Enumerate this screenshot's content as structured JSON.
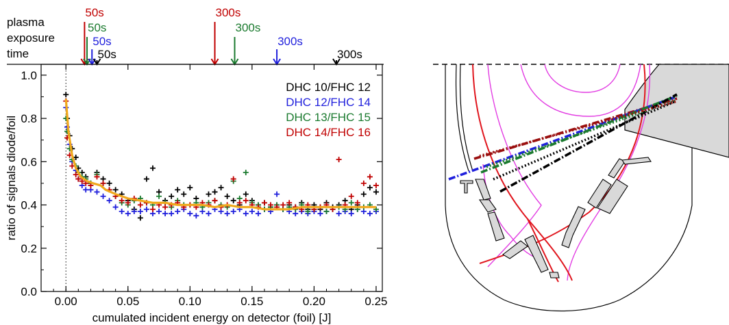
{
  "chart_data": {
    "type": "scatter",
    "xlabel": "cumulated incident energy on detector (foil) [J]",
    "ylabel": "ratio of signals diode/foil",
    "xlim": [
      -0.02,
      0.255
    ],
    "ylim": [
      0.0,
      1.05
    ],
    "xticks": [
      0.0,
      0.05,
      0.1,
      0.15,
      0.2,
      0.25
    ],
    "xtick_labels": [
      "0.00",
      "0.05",
      "0.10",
      "0.15",
      "0.20",
      "0.25"
    ],
    "yticks": [
      0.0,
      0.2,
      0.4,
      0.6,
      0.8,
      1.0
    ],
    "ytick_labels": [
      "0.0",
      "0.2",
      "0.4",
      "0.6",
      "0.8",
      "1.0"
    ],
    "legend_position": "top-right",
    "exposure_axis": {
      "title_lines": [
        "plasma",
        "exposure",
        "time"
      ],
      "markers": [
        {
          "label": "50s",
          "x": 0.015,
          "color": "#c00000",
          "level": 0
        },
        {
          "label": "50s",
          "x": 0.017,
          "color": "#1a7a2e",
          "level": 1
        },
        {
          "label": "50s",
          "x": 0.021,
          "color": "#1f1fdc",
          "level": 2
        },
        {
          "label": "50s",
          "x": 0.025,
          "color": "#000000",
          "level": 3
        },
        {
          "label": "300s",
          "x": 0.12,
          "color": "#c00000",
          "level": 0
        },
        {
          "label": "300s",
          "x": 0.136,
          "color": "#1a7a2e",
          "level": 1
        },
        {
          "label": "300s",
          "x": 0.17,
          "color": "#1f1fdc",
          "level": 2
        },
        {
          "label": "300s",
          "x": 0.218,
          "color": "#000000",
          "level": 3
        }
      ]
    },
    "series": [
      {
        "name": "DHC 10/FHC 12",
        "color": "#000000",
        "points": [
          [
            0.0,
            0.91
          ],
          [
            0.001,
            0.8
          ],
          [
            0.003,
            0.72
          ],
          [
            0.005,
            0.66
          ],
          [
            0.008,
            0.62
          ],
          [
            0.01,
            0.57
          ],
          [
            0.013,
            0.55
          ],
          [
            0.016,
            0.53
          ],
          [
            0.02,
            0.5
          ],
          [
            0.025,
            0.55
          ],
          [
            0.03,
            0.52
          ],
          [
            0.035,
            0.5
          ],
          [
            0.04,
            0.47
          ],
          [
            0.045,
            0.45
          ],
          [
            0.05,
            0.42
          ],
          [
            0.055,
            0.38
          ],
          [
            0.06,
            0.34
          ],
          [
            0.065,
            0.52
          ],
          [
            0.07,
            0.57
          ],
          [
            0.075,
            0.46
          ],
          [
            0.08,
            0.42
          ],
          [
            0.085,
            0.44
          ],
          [
            0.09,
            0.47
          ],
          [
            0.095,
            0.45
          ],
          [
            0.1,
            0.48
          ],
          [
            0.105,
            0.43
          ],
          [
            0.11,
            0.4
          ],
          [
            0.115,
            0.45
          ],
          [
            0.12,
            0.46
          ],
          [
            0.125,
            0.48
          ],
          [
            0.13,
            0.44
          ],
          [
            0.135,
            0.42
          ],
          [
            0.14,
            0.4
          ],
          [
            0.145,
            0.45
          ],
          [
            0.15,
            0.42
          ],
          [
            0.155,
            0.4
          ],
          [
            0.16,
            0.41
          ],
          [
            0.165,
            0.39
          ],
          [
            0.17,
            0.4
          ],
          [
            0.175,
            0.38
          ],
          [
            0.18,
            0.4
          ],
          [
            0.185,
            0.39
          ],
          [
            0.19,
            0.41
          ],
          [
            0.195,
            0.38
          ],
          [
            0.2,
            0.4
          ],
          [
            0.205,
            0.38
          ],
          [
            0.21,
            0.41
          ],
          [
            0.215,
            0.39
          ],
          [
            0.22,
            0.4
          ],
          [
            0.225,
            0.42
          ],
          [
            0.23,
            0.38
          ],
          [
            0.235,
            0.4
          ],
          [
            0.24,
            0.45
          ],
          [
            0.245,
            0.48
          ],
          [
            0.25,
            0.46
          ]
        ]
      },
      {
        "name": "DHC 12/FHC 14",
        "color": "#1f1fdc",
        "points": [
          [
            0.0,
            0.85
          ],
          [
            0.001,
            0.76
          ],
          [
            0.003,
            0.68
          ],
          [
            0.005,
            0.6
          ],
          [
            0.008,
            0.56
          ],
          [
            0.01,
            0.52
          ],
          [
            0.013,
            0.49
          ],
          [
            0.016,
            0.47
          ],
          [
            0.02,
            0.47
          ],
          [
            0.025,
            0.46
          ],
          [
            0.03,
            0.44
          ],
          [
            0.035,
            0.42
          ],
          [
            0.04,
            0.39
          ],
          [
            0.045,
            0.37
          ],
          [
            0.05,
            0.36
          ],
          [
            0.055,
            0.37
          ],
          [
            0.06,
            0.37
          ],
          [
            0.065,
            0.38
          ],
          [
            0.07,
            0.36
          ],
          [
            0.075,
            0.37
          ],
          [
            0.08,
            0.36
          ],
          [
            0.085,
            0.36
          ],
          [
            0.09,
            0.37
          ],
          [
            0.095,
            0.38
          ],
          [
            0.1,
            0.36
          ],
          [
            0.105,
            0.35
          ],
          [
            0.11,
            0.37
          ],
          [
            0.115,
            0.36
          ],
          [
            0.12,
            0.38
          ],
          [
            0.125,
            0.37
          ],
          [
            0.13,
            0.36
          ],
          [
            0.135,
            0.37
          ],
          [
            0.14,
            0.38
          ],
          [
            0.145,
            0.36
          ],
          [
            0.15,
            0.37
          ],
          [
            0.155,
            0.36
          ],
          [
            0.16,
            0.38
          ],
          [
            0.165,
            0.37
          ],
          [
            0.17,
            0.45
          ],
          [
            0.175,
            0.38
          ],
          [
            0.18,
            0.37
          ],
          [
            0.185,
            0.36
          ],
          [
            0.19,
            0.37
          ],
          [
            0.195,
            0.36
          ],
          [
            0.2,
            0.37
          ],
          [
            0.205,
            0.36
          ],
          [
            0.21,
            0.37
          ],
          [
            0.215,
            0.38
          ],
          [
            0.22,
            0.36
          ],
          [
            0.225,
            0.37
          ],
          [
            0.23,
            0.36
          ],
          [
            0.235,
            0.38
          ],
          [
            0.24,
            0.37
          ],
          [
            0.245,
            0.36
          ],
          [
            0.25,
            0.37
          ]
        ]
      },
      {
        "name": "DHC 13/FHC 15",
        "color": "#1a7a2e",
        "points": [
          [
            0.0,
            0.8
          ],
          [
            0.001,
            0.74
          ],
          [
            0.003,
            0.66
          ],
          [
            0.005,
            0.61
          ],
          [
            0.008,
            0.58
          ],
          [
            0.01,
            0.55
          ],
          [
            0.013,
            0.53
          ],
          [
            0.016,
            0.52
          ],
          [
            0.02,
            0.5
          ],
          [
            0.025,
            0.54
          ],
          [
            0.03,
            0.5
          ],
          [
            0.035,
            0.47
          ],
          [
            0.04,
            0.44
          ],
          [
            0.045,
            0.41
          ],
          [
            0.05,
            0.4
          ],
          [
            0.055,
            0.42
          ],
          [
            0.06,
            0.43
          ],
          [
            0.065,
            0.41
          ],
          [
            0.07,
            0.4
          ],
          [
            0.075,
            0.44
          ],
          [
            0.08,
            0.41
          ],
          [
            0.085,
            0.39
          ],
          [
            0.09,
            0.42
          ],
          [
            0.095,
            0.4
          ],
          [
            0.1,
            0.4
          ],
          [
            0.105,
            0.41
          ],
          [
            0.11,
            0.39
          ],
          [
            0.115,
            0.41
          ],
          [
            0.12,
            0.42
          ],
          [
            0.125,
            0.4
          ],
          [
            0.13,
            0.39
          ],
          [
            0.135,
            0.51
          ],
          [
            0.14,
            0.43
          ],
          [
            0.145,
            0.55
          ],
          [
            0.15,
            0.41
          ],
          [
            0.155,
            0.4
          ],
          [
            0.16,
            0.38
          ],
          [
            0.165,
            0.39
          ],
          [
            0.17,
            0.4
          ],
          [
            0.175,
            0.38
          ],
          [
            0.18,
            0.39
          ],
          [
            0.185,
            0.38
          ],
          [
            0.19,
            0.4
          ],
          [
            0.195,
            0.37
          ],
          [
            0.2,
            0.38
          ],
          [
            0.205,
            0.39
          ],
          [
            0.21,
            0.37
          ],
          [
            0.215,
            0.38
          ],
          [
            0.22,
            0.39
          ],
          [
            0.225,
            0.38
          ],
          [
            0.23,
            0.41
          ],
          [
            0.235,
            0.38
          ],
          [
            0.24,
            0.39
          ],
          [
            0.245,
            0.4
          ],
          [
            0.25,
            0.38
          ]
        ]
      },
      {
        "name": "DHC 14/FHC 16",
        "color": "#c00000",
        "points": [
          [
            0.0,
            0.88
          ],
          [
            0.001,
            0.71
          ],
          [
            0.003,
            0.63
          ],
          [
            0.005,
            0.58
          ],
          [
            0.008,
            0.54
          ],
          [
            0.01,
            0.52
          ],
          [
            0.013,
            0.51
          ],
          [
            0.016,
            0.5
          ],
          [
            0.02,
            0.49
          ],
          [
            0.025,
            0.53
          ],
          [
            0.03,
            0.5
          ],
          [
            0.035,
            0.47
          ],
          [
            0.04,
            0.44
          ],
          [
            0.045,
            0.42
          ],
          [
            0.05,
            0.41
          ],
          [
            0.055,
            0.43
          ],
          [
            0.06,
            0.4
          ],
          [
            0.065,
            0.41
          ],
          [
            0.07,
            0.38
          ],
          [
            0.075,
            0.4
          ],
          [
            0.08,
            0.39
          ],
          [
            0.085,
            0.4
          ],
          [
            0.09,
            0.41
          ],
          [
            0.095,
            0.39
          ],
          [
            0.1,
            0.4
          ],
          [
            0.105,
            0.39
          ],
          [
            0.11,
            0.41
          ],
          [
            0.115,
            0.4
          ],
          [
            0.12,
            0.42
          ],
          [
            0.125,
            0.39
          ],
          [
            0.13,
            0.4
          ],
          [
            0.135,
            0.52
          ],
          [
            0.14,
            0.41
          ],
          [
            0.145,
            0.42
          ],
          [
            0.15,
            0.4
          ],
          [
            0.155,
            0.39
          ],
          [
            0.16,
            0.41
          ],
          [
            0.165,
            0.4
          ],
          [
            0.17,
            0.39
          ],
          [
            0.175,
            0.4
          ],
          [
            0.18,
            0.41
          ],
          [
            0.185,
            0.39
          ],
          [
            0.19,
            0.38
          ],
          [
            0.195,
            0.4
          ],
          [
            0.2,
            0.38
          ],
          [
            0.205,
            0.39
          ],
          [
            0.21,
            0.4
          ],
          [
            0.215,
            0.38
          ],
          [
            0.22,
            0.61
          ],
          [
            0.225,
            0.4
          ],
          [
            0.23,
            0.44
          ],
          [
            0.235,
            0.41
          ],
          [
            0.24,
            0.5
          ],
          [
            0.245,
            0.53
          ],
          [
            0.25,
            0.49
          ]
        ]
      }
    ],
    "fit_curve": {
      "color": "#f0a81c",
      "points": [
        [
          0.0,
          0.89
        ],
        [
          0.002,
          0.74
        ],
        [
          0.005,
          0.63
        ],
        [
          0.008,
          0.57
        ],
        [
          0.012,
          0.53
        ],
        [
          0.017,
          0.51
        ],
        [
          0.022,
          0.5
        ],
        [
          0.028,
          0.49
        ],
        [
          0.032,
          0.47
        ],
        [
          0.04,
          0.45
        ],
        [
          0.05,
          0.43
        ],
        [
          0.06,
          0.42
        ],
        [
          0.07,
          0.41
        ],
        [
          0.08,
          0.41
        ],
        [
          0.09,
          0.4
        ],
        [
          0.1,
          0.4
        ],
        [
          0.11,
          0.4
        ],
        [
          0.12,
          0.39
        ],
        [
          0.13,
          0.4
        ],
        [
          0.14,
          0.39
        ],
        [
          0.15,
          0.39
        ],
        [
          0.16,
          0.38
        ],
        [
          0.17,
          0.38
        ],
        [
          0.18,
          0.38
        ],
        [
          0.19,
          0.39
        ],
        [
          0.2,
          0.39
        ],
        [
          0.21,
          0.39
        ],
        [
          0.22,
          0.39
        ],
        [
          0.23,
          0.39
        ],
        [
          0.24,
          0.39
        ],
        [
          0.25,
          0.39
        ]
      ]
    }
  },
  "colors": {
    "black": "#000000",
    "blue": "#1f1fdc",
    "green": "#1a7a2e",
    "red": "#c00000",
    "orange_fit": "#f0a81c",
    "magenta_flux": "#e23ce2",
    "separatrix": "#e0151d",
    "structure_fill": "#d9d9d9"
  }
}
